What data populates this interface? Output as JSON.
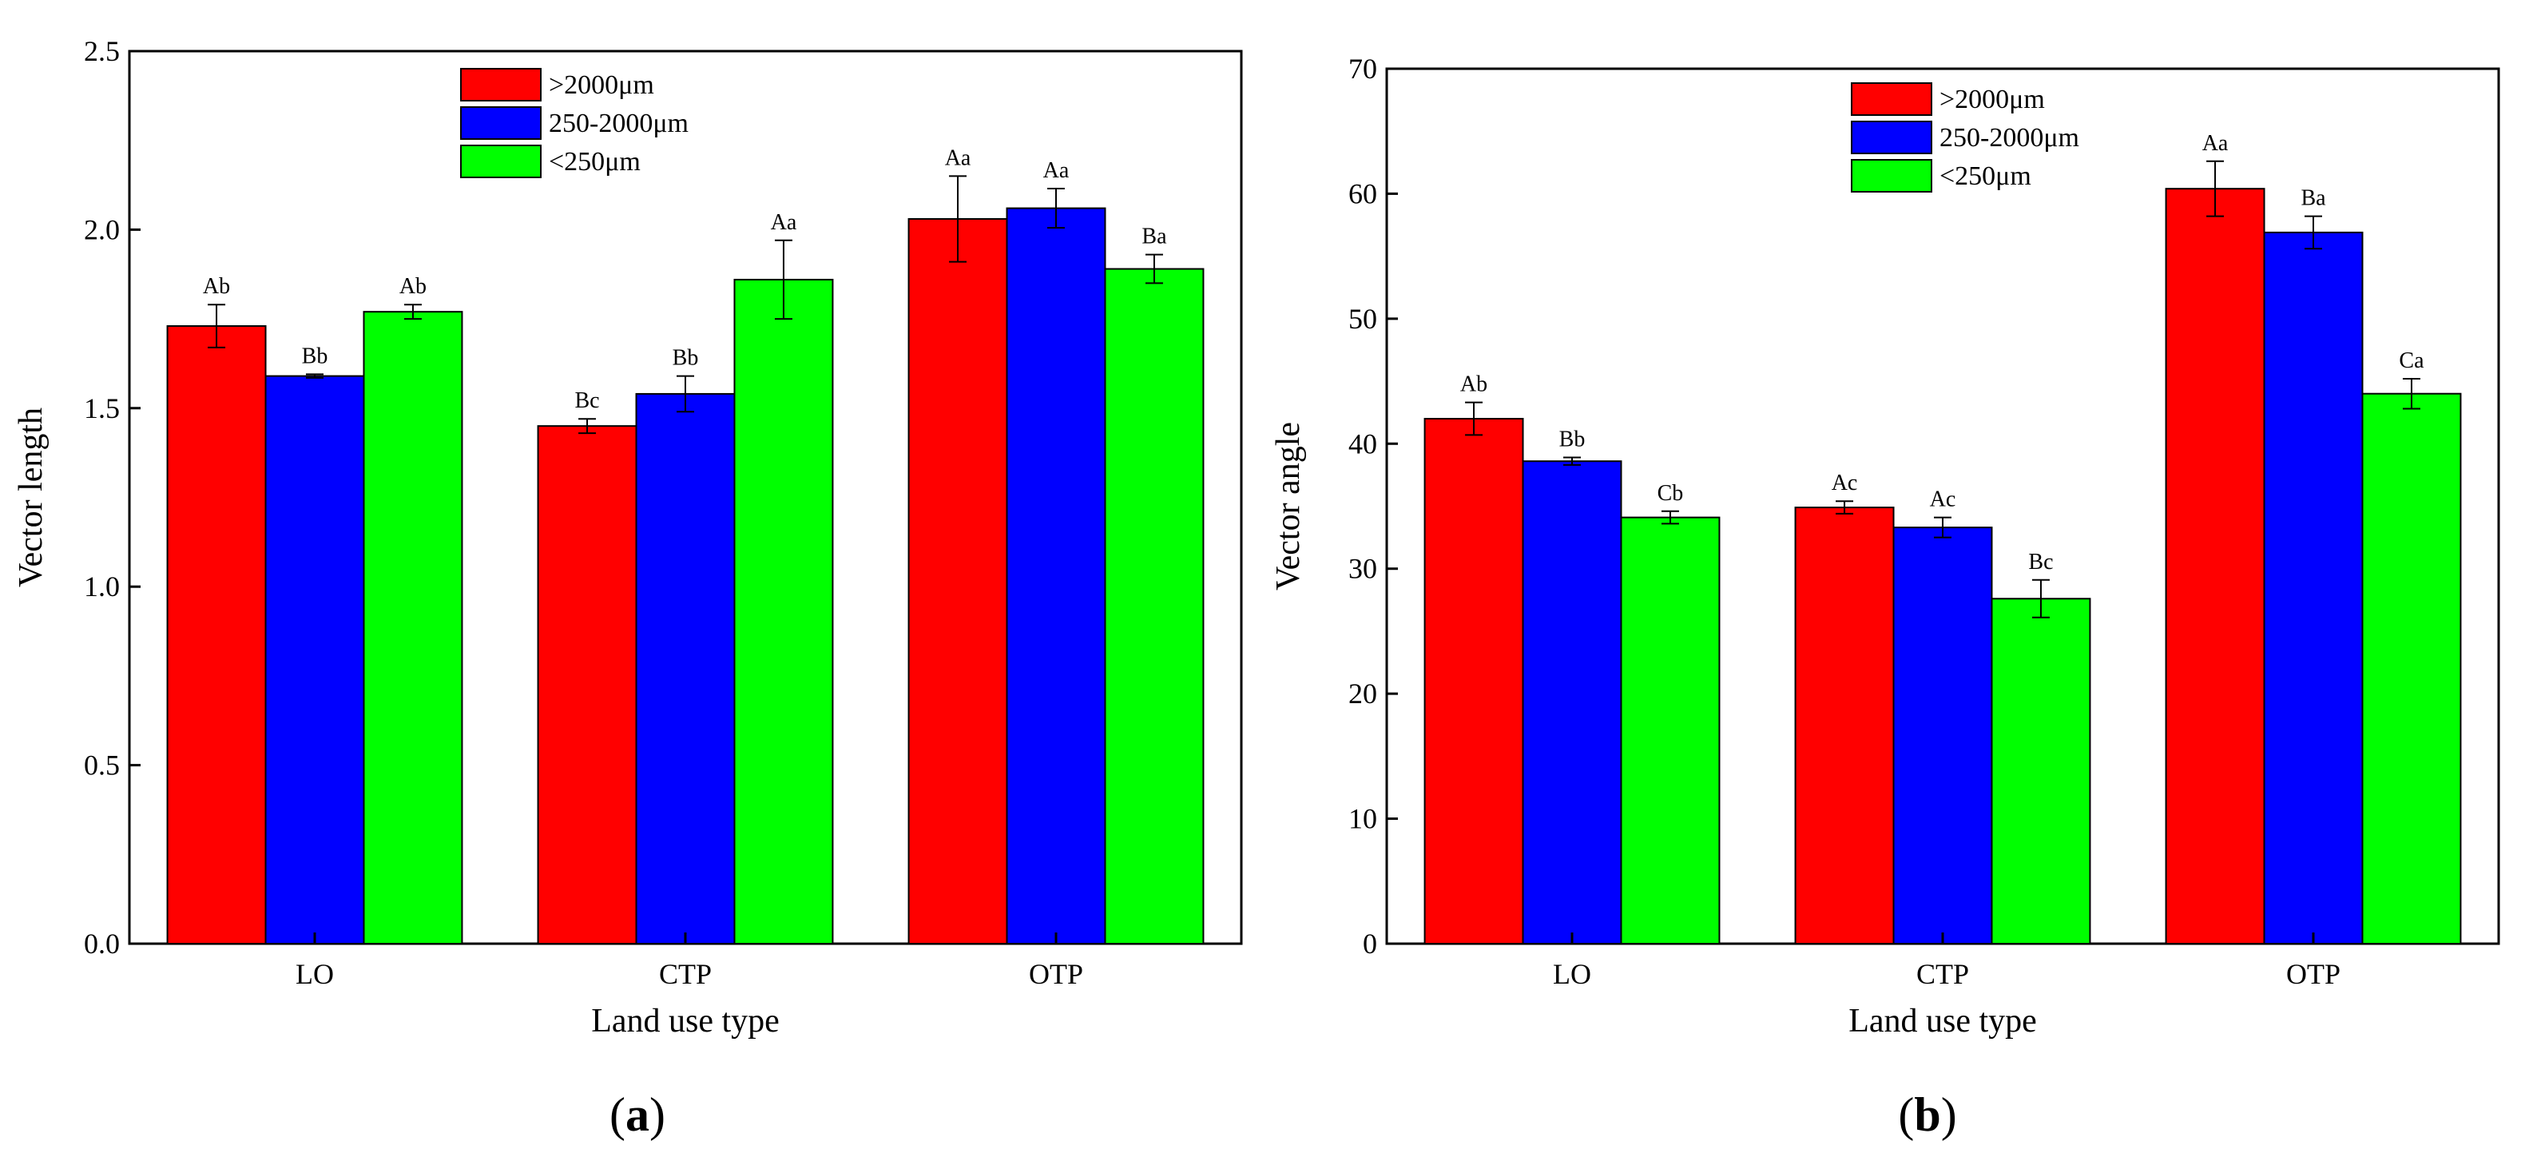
{
  "chart_data": [
    {
      "type": "bar",
      "panel_label": "(a)",
      "title": "",
      "xlabel": "Land use type",
      "ylabel": "Vector length",
      "ylim": [
        0,
        2.5
      ],
      "yticks": [
        "0.0",
        "0.5",
        "1.0",
        "1.5",
        "2.0",
        "2.5"
      ],
      "ytick_values": [
        0,
        0.5,
        1.0,
        1.5,
        2.0,
        2.5
      ],
      "categories": [
        "LO",
        "CTP",
        "OTP"
      ],
      "legend_position": "top-center",
      "series": [
        {
          "name": ">2000μm",
          "color": "#ff0000",
          "values": [
            1.73,
            1.45,
            2.03
          ],
          "errors": [
            0.06,
            0.02,
            0.12
          ],
          "labels": [
            "Ab",
            "Bc",
            "Aa"
          ]
        },
        {
          "name": "250-2000μm",
          "color": "#0000ff",
          "values": [
            1.59,
            1.54,
            2.06
          ],
          "errors": [
            0.005,
            0.05,
            0.055
          ],
          "labels": [
            "Bb",
            "Bb",
            "Aa"
          ]
        },
        {
          "name": "<250μm",
          "color": "#00ff00",
          "values": [
            1.77,
            1.86,
            1.89
          ],
          "errors": [
            0.02,
            0.11,
            0.04
          ],
          "labels": [
            "Ab",
            "Aa",
            "Ba"
          ]
        }
      ]
    },
    {
      "type": "bar",
      "panel_label": "(b)",
      "title": "",
      "xlabel": "Land use type",
      "ylabel": "Vector angle",
      "ylim": [
        0,
        70
      ],
      "yticks": [
        "0",
        "10",
        "20",
        "30",
        "40",
        "50",
        "60",
        "70"
      ],
      "ytick_values": [
        0,
        10,
        20,
        30,
        40,
        50,
        60,
        70
      ],
      "categories": [
        "LO",
        "CTP",
        "OTP"
      ],
      "legend_position": "top-center",
      "series": [
        {
          "name": ">2000μm",
          "color": "#ff0000",
          "values": [
            42.0,
            34.9,
            60.4
          ],
          "errors": [
            1.3,
            0.5,
            2.2
          ],
          "labels": [
            "Ab",
            "Ac",
            "Aa"
          ]
        },
        {
          "name": "250-2000μm",
          "color": "#0000ff",
          "values": [
            38.6,
            33.3,
            56.9
          ],
          "errors": [
            0.3,
            0.8,
            1.3
          ],
          "labels": [
            "Bb",
            "Ac",
            "Ba"
          ]
        },
        {
          "name": "<250μm",
          "color": "#00ff00",
          "values": [
            34.1,
            27.6,
            44.0
          ],
          "errors": [
            0.5,
            1.5,
            1.2
          ],
          "labels": [
            "Cb",
            "Bc",
            "Ca"
          ]
        }
      ]
    }
  ]
}
